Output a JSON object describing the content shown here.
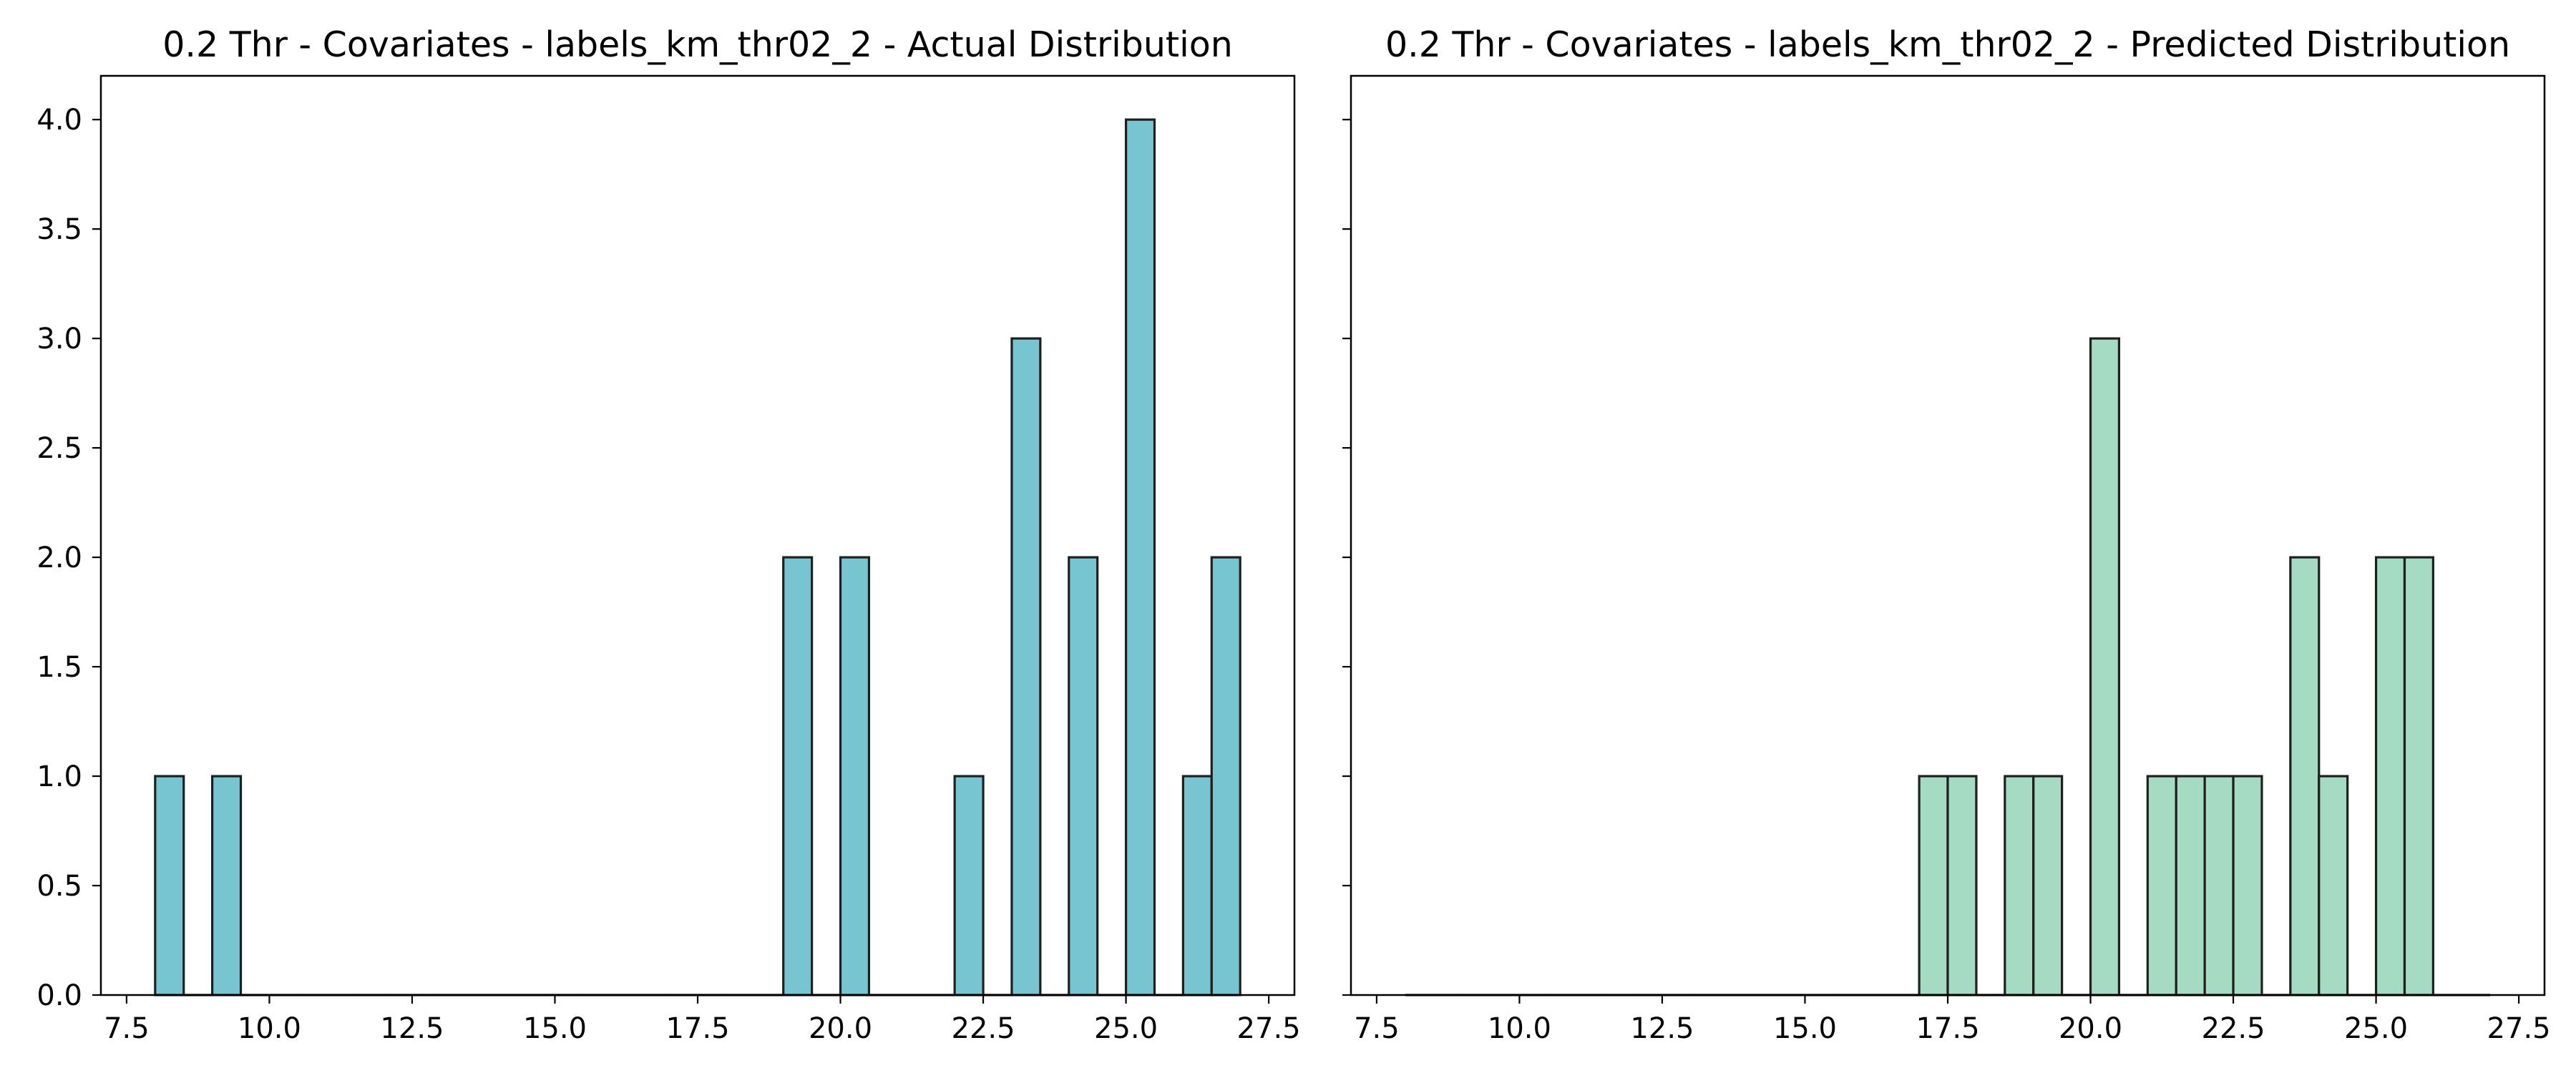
{
  "chart_data": [
    {
      "type": "bar",
      "title": "0.2 Thr - Covariates - labels_km_thr02_2 - Actual Distribution",
      "xlabel": "",
      "ylabel": "",
      "xlim": [
        7.05,
        27.95
      ],
      "ylim": [
        0,
        4.2
      ],
      "grid": false,
      "bar_color": "#76c5d1",
      "edge_color": "#1f1f1f",
      "bin_start": 8.0,
      "bin_width": 0.5,
      "counts": [
        1,
        0,
        1,
        0,
        0,
        0,
        0,
        0,
        0,
        0,
        0,
        0,
        0,
        0,
        0,
        0,
        0,
        0,
        0,
        0,
        0,
        0,
        2,
        0,
        2,
        0,
        0,
        0,
        1,
        0,
        3,
        0,
        2,
        0,
        4,
        0,
        1,
        2
      ],
      "x_ticks": [
        7.5,
        10.0,
        12.5,
        15.0,
        17.5,
        20.0,
        22.5,
        25.0,
        27.5
      ],
      "x_tick_labels": [
        "7.5",
        "10.0",
        "12.5",
        "15.0",
        "17.5",
        "20.0",
        "22.5",
        "25.0",
        "27.5"
      ],
      "y_ticks": [
        0,
        0.5,
        1.0,
        1.5,
        2.0,
        2.5,
        3.0,
        3.5,
        4.0
      ],
      "y_tick_labels": [
        "0.0",
        "0.5",
        "1.0",
        "1.5",
        "2.0",
        "2.5",
        "3.0",
        "3.5",
        "4.0"
      ],
      "show_y_labels": true
    },
    {
      "type": "bar",
      "title": "0.2 Thr - Covariates - labels_km_thr02_2 - Predicted Distribution",
      "xlabel": "",
      "ylabel": "",
      "xlim": [
        7.05,
        27.95
      ],
      "ylim": [
        0,
        4.2
      ],
      "grid": false,
      "bar_color": "#a6dbc3",
      "edge_color": "#1f1f1f",
      "bin_start": 8.0,
      "bin_width": 0.5,
      "counts": [
        0,
        0,
        0,
        0,
        0,
        0,
        0,
        0,
        0,
        0,
        0,
        0,
        0,
        0,
        0,
        0,
        0,
        0,
        1,
        1,
        0,
        1,
        1,
        0,
        3,
        0,
        1,
        1,
        1,
        1,
        0,
        2,
        1,
        0,
        2,
        2,
        0,
        0
      ],
      "x_ticks": [
        7.5,
        10.0,
        12.5,
        15.0,
        17.5,
        20.0,
        22.5,
        25.0,
        27.5
      ],
      "x_tick_labels": [
        "7.5",
        "10.0",
        "12.5",
        "15.0",
        "17.5",
        "20.0",
        "22.5",
        "25.0",
        "27.5"
      ],
      "y_ticks": [
        0,
        0.5,
        1.0,
        1.5,
        2.0,
        2.5,
        3.0,
        3.5,
        4.0
      ],
      "y_tick_labels": [
        "",
        "",
        "",
        "",
        "",
        "",
        "",
        "",
        ""
      ],
      "show_y_labels": false
    }
  ]
}
